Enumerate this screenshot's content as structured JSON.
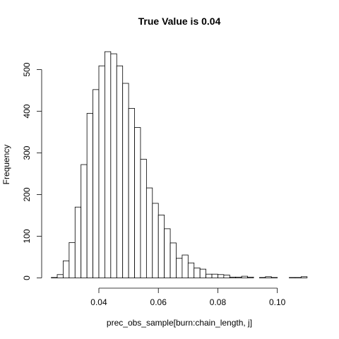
{
  "chart_data": {
    "type": "bar",
    "title": "True Value is 0.04",
    "xlabel": "prec_obs_sample[burn:chain_length, j]",
    "ylabel": "Frequency",
    "xlim": [
      0.024,
      0.11
    ],
    "ylim": [
      0,
      545
    ],
    "grid": false,
    "x_ticks": [
      0.04,
      0.06,
      0.08,
      0.1
    ],
    "x_tick_labels": [
      "0.04",
      "0.06",
      "0.08",
      "0.10"
    ],
    "y_ticks": [
      0,
      100,
      200,
      300,
      400,
      500
    ],
    "y_tick_labels": [
      "0",
      "100",
      "200",
      "300",
      "400",
      "500"
    ],
    "bin_width": 0.002,
    "bin_starts": [
      0.024,
      0.026,
      0.028,
      0.03,
      0.032,
      0.034,
      0.036,
      0.038,
      0.04,
      0.042,
      0.044,
      0.046,
      0.048,
      0.05,
      0.052,
      0.054,
      0.056,
      0.058,
      0.06,
      0.062,
      0.064,
      0.066,
      0.068,
      0.07,
      0.072,
      0.074,
      0.076,
      0.078,
      0.08,
      0.082,
      0.084,
      0.086,
      0.088,
      0.09,
      0.092,
      0.094,
      0.096,
      0.098,
      0.1,
      0.102,
      0.104,
      0.106,
      0.108
    ],
    "values": [
      1,
      8,
      41,
      85,
      170,
      272,
      395,
      452,
      509,
      543,
      538,
      509,
      467,
      407,
      361,
      285,
      216,
      179,
      151,
      118,
      84,
      47,
      55,
      36,
      24,
      21,
      9,
      9,
      8,
      7,
      2,
      2,
      4,
      2,
      0,
      1,
      3,
      1,
      0,
      0,
      1,
      1,
      3
    ]
  }
}
